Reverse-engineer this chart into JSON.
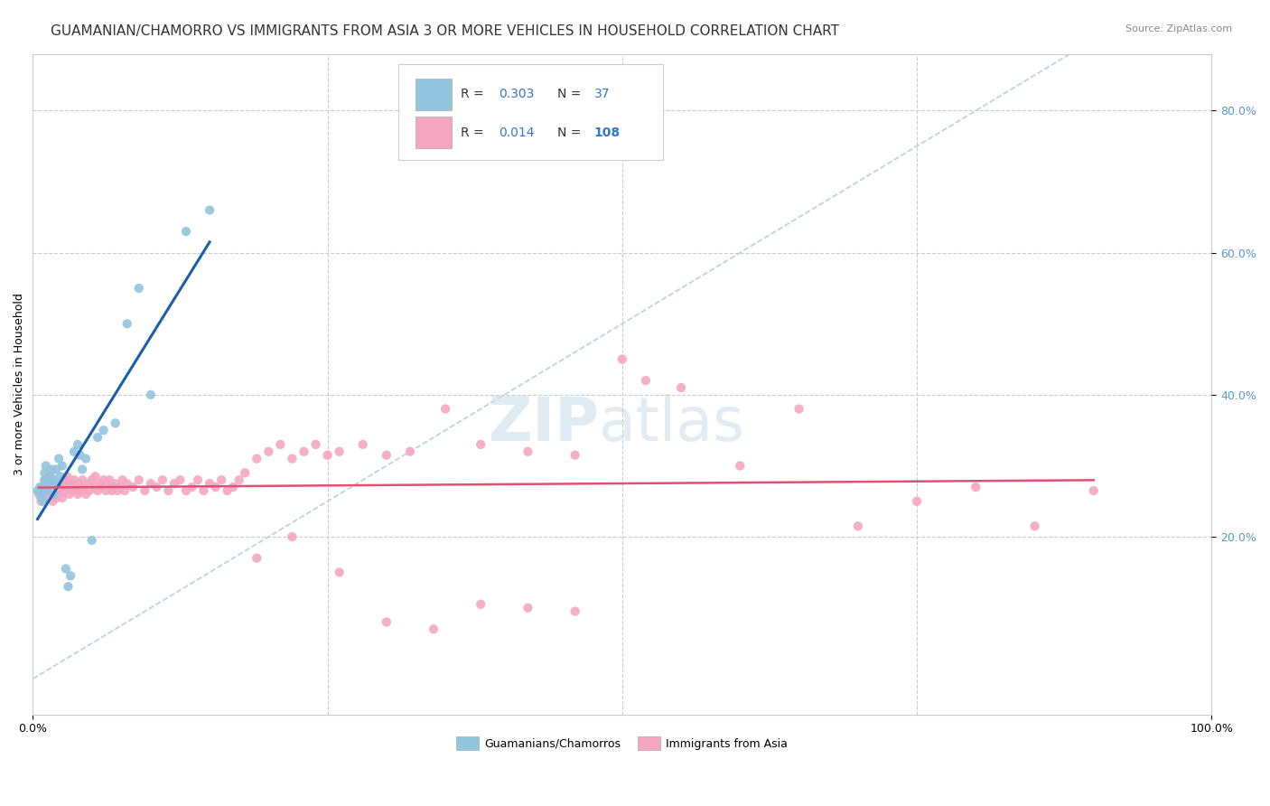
{
  "title": "GUAMANIAN/CHAMORRO VS IMMIGRANTS FROM ASIA 3 OR MORE VEHICLES IN HOUSEHOLD CORRELATION CHART",
  "source": "Source: ZipAtlas.com",
  "ylabel": "3 or more Vehicles in Household",
  "right_yticks": [
    "20.0%",
    "40.0%",
    "60.0%",
    "80.0%"
  ],
  "right_ytick_vals": [
    0.2,
    0.4,
    0.6,
    0.8
  ],
  "xlim": [
    0.0,
    1.0
  ],
  "ylim": [
    -0.05,
    0.88
  ],
  "blue_color": "#92c5de",
  "pink_color": "#f4a6c0",
  "blue_line_color": "#1a5fa8",
  "pink_line_color": "#e05070",
  "diagonal_color": "#b8cfe8",
  "grid_color": "#cccccc",
  "background_color": "#ffffff",
  "blue_scatter_x": [
    0.004,
    0.006,
    0.007,
    0.008,
    0.009,
    0.01,
    0.01,
    0.011,
    0.012,
    0.013,
    0.014,
    0.015,
    0.016,
    0.017,
    0.018,
    0.02,
    0.021,
    0.022,
    0.023,
    0.025,
    0.028,
    0.03,
    0.032,
    0.035,
    0.038,
    0.04,
    0.042,
    0.045,
    0.05,
    0.055,
    0.06,
    0.07,
    0.08,
    0.09,
    0.1,
    0.13,
    0.15
  ],
  "blue_scatter_y": [
    0.265,
    0.27,
    0.255,
    0.26,
    0.25,
    0.28,
    0.29,
    0.3,
    0.265,
    0.27,
    0.275,
    0.285,
    0.295,
    0.28,
    0.26,
    0.295,
    0.275,
    0.31,
    0.285,
    0.3,
    0.155,
    0.13,
    0.145,
    0.32,
    0.33,
    0.315,
    0.295,
    0.31,
    0.195,
    0.34,
    0.35,
    0.36,
    0.5,
    0.55,
    0.4,
    0.63,
    0.66
  ],
  "pink_scatter_x": [
    0.005,
    0.007,
    0.008,
    0.01,
    0.01,
    0.012,
    0.013,
    0.014,
    0.015,
    0.016,
    0.017,
    0.018,
    0.019,
    0.02,
    0.021,
    0.022,
    0.023,
    0.024,
    0.025,
    0.026,
    0.027,
    0.028,
    0.029,
    0.03,
    0.031,
    0.033,
    0.034,
    0.035,
    0.036,
    0.038,
    0.039,
    0.04,
    0.042,
    0.043,
    0.045,
    0.047,
    0.048,
    0.05,
    0.052,
    0.053,
    0.055,
    0.057,
    0.058,
    0.06,
    0.062,
    0.063,
    0.065,
    0.067,
    0.068,
    0.07,
    0.072,
    0.074,
    0.076,
    0.078,
    0.08,
    0.085,
    0.09,
    0.095,
    0.1,
    0.105,
    0.11,
    0.115,
    0.12,
    0.125,
    0.13,
    0.135,
    0.14,
    0.145,
    0.15,
    0.155,
    0.16,
    0.165,
    0.17,
    0.175,
    0.18,
    0.19,
    0.2,
    0.21,
    0.22,
    0.23,
    0.24,
    0.25,
    0.26,
    0.28,
    0.3,
    0.32,
    0.35,
    0.38,
    0.42,
    0.46,
    0.5,
    0.52,
    0.55,
    0.6,
    0.65,
    0.7,
    0.75,
    0.8,
    0.85,
    0.9,
    0.42,
    0.46,
    0.38,
    0.34,
    0.3,
    0.26,
    0.22,
    0.19
  ],
  "pink_scatter_y": [
    0.26,
    0.25,
    0.27,
    0.255,
    0.28,
    0.26,
    0.275,
    0.285,
    0.265,
    0.275,
    0.25,
    0.27,
    0.26,
    0.255,
    0.265,
    0.275,
    0.26,
    0.27,
    0.255,
    0.28,
    0.265,
    0.275,
    0.285,
    0.27,
    0.26,
    0.275,
    0.265,
    0.28,
    0.27,
    0.26,
    0.275,
    0.265,
    0.28,
    0.27,
    0.26,
    0.275,
    0.265,
    0.28,
    0.27,
    0.285,
    0.265,
    0.275,
    0.27,
    0.28,
    0.265,
    0.275,
    0.28,
    0.265,
    0.27,
    0.275,
    0.265,
    0.27,
    0.28,
    0.265,
    0.275,
    0.27,
    0.28,
    0.265,
    0.275,
    0.27,
    0.28,
    0.265,
    0.275,
    0.28,
    0.265,
    0.27,
    0.28,
    0.265,
    0.275,
    0.27,
    0.28,
    0.265,
    0.27,
    0.28,
    0.29,
    0.31,
    0.32,
    0.33,
    0.31,
    0.32,
    0.33,
    0.315,
    0.32,
    0.33,
    0.315,
    0.32,
    0.38,
    0.33,
    0.32,
    0.315,
    0.45,
    0.42,
    0.41,
    0.3,
    0.38,
    0.215,
    0.25,
    0.27,
    0.215,
    0.265,
    0.1,
    0.095,
    0.105,
    0.07,
    0.08,
    0.15,
    0.2,
    0.17
  ],
  "title_fontsize": 11,
  "source_fontsize": 8,
  "axis_fontsize": 9
}
